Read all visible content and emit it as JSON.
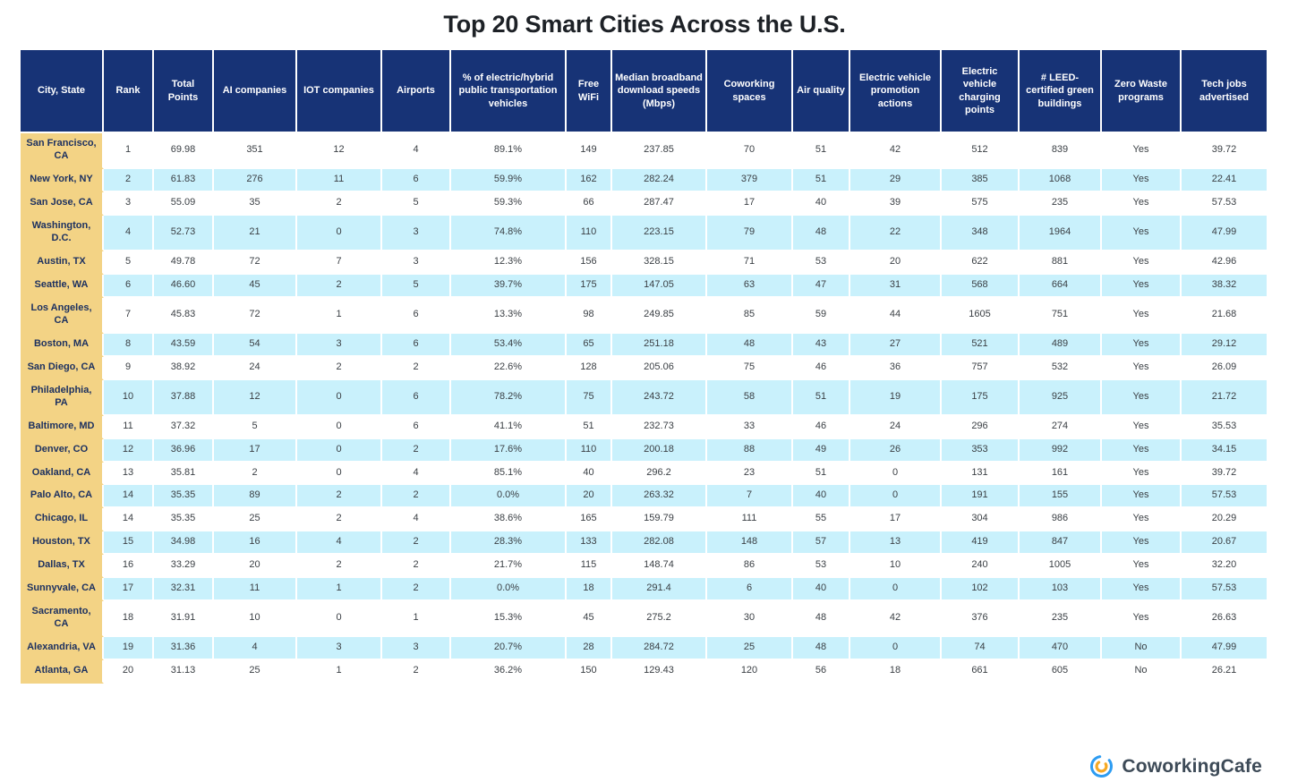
{
  "title": "Top 20 Smart Cities Across the U.S.",
  "chart_data": {
    "type": "table",
    "title": "Top 20 Smart Cities Across the U.S.",
    "columns": [
      "City, State",
      "Rank",
      "Total Points",
      "AI companies",
      "IOT companies",
      "Airports",
      "% of electric/hybrid public transportation vehicles",
      "Free WiFi",
      "Median broadband download speeds (Mbps)",
      "Coworking spaces",
      "Air quality",
      "Electric vehicle promotion actions",
      "Electric vehicle charging points",
      "# LEED-certified green buildings",
      "Zero Waste programs",
      "Tech jobs advertised"
    ],
    "rows": [
      [
        "San Francisco, CA",
        "1",
        "69.98",
        "351",
        "12",
        "4",
        "89.1%",
        "149",
        "237.85",
        "70",
        "51",
        "42",
        "512",
        "839",
        "Yes",
        "39.72"
      ],
      [
        "New York, NY",
        "2",
        "61.83",
        "276",
        "11",
        "6",
        "59.9%",
        "162",
        "282.24",
        "379",
        "51",
        "29",
        "385",
        "1068",
        "Yes",
        "22.41"
      ],
      [
        "San Jose, CA",
        "3",
        "55.09",
        "35",
        "2",
        "5",
        "59.3%",
        "66",
        "287.47",
        "17",
        "40",
        "39",
        "575",
        "235",
        "Yes",
        "57.53"
      ],
      [
        "Washington, D.C.",
        "4",
        "52.73",
        "21",
        "0",
        "3",
        "74.8%",
        "110",
        "223.15",
        "79",
        "48",
        "22",
        "348",
        "1964",
        "Yes",
        "47.99"
      ],
      [
        "Austin, TX",
        "5",
        "49.78",
        "72",
        "7",
        "3",
        "12.3%",
        "156",
        "328.15",
        "71",
        "53",
        "20",
        "622",
        "881",
        "Yes",
        "42.96"
      ],
      [
        "Seattle, WA",
        "6",
        "46.60",
        "45",
        "2",
        "5",
        "39.7%",
        "175",
        "147.05",
        "63",
        "47",
        "31",
        "568",
        "664",
        "Yes",
        "38.32"
      ],
      [
        "Los Angeles, CA",
        "7",
        "45.83",
        "72",
        "1",
        "6",
        "13.3%",
        "98",
        "249.85",
        "85",
        "59",
        "44",
        "1605",
        "751",
        "Yes",
        "21.68"
      ],
      [
        "Boston, MA",
        "8",
        "43.59",
        "54",
        "3",
        "6",
        "53.4%",
        "65",
        "251.18",
        "48",
        "43",
        "27",
        "521",
        "489",
        "Yes",
        "29.12"
      ],
      [
        "San Diego, CA",
        "9",
        "38.92",
        "24",
        "2",
        "2",
        "22.6%",
        "128",
        "205.06",
        "75",
        "46",
        "36",
        "757",
        "532",
        "Yes",
        "26.09"
      ],
      [
        "Philadelphia, PA",
        "10",
        "37.88",
        "12",
        "0",
        "6",
        "78.2%",
        "75",
        "243.72",
        "58",
        "51",
        "19",
        "175",
        "925",
        "Yes",
        "21.72"
      ],
      [
        "Baltimore, MD",
        "11",
        "37.32",
        "5",
        "0",
        "6",
        "41.1%",
        "51",
        "232.73",
        "33",
        "46",
        "24",
        "296",
        "274",
        "Yes",
        "35.53"
      ],
      [
        "Denver, CO",
        "12",
        "36.96",
        "17",
        "0",
        "2",
        "17.6%",
        "110",
        "200.18",
        "88",
        "49",
        "26",
        "353",
        "992",
        "Yes",
        "34.15"
      ],
      [
        "Oakland, CA",
        "13",
        "35.81",
        "2",
        "0",
        "4",
        "85.1%",
        "40",
        "296.2",
        "23",
        "51",
        "0",
        "131",
        "161",
        "Yes",
        "39.72"
      ],
      [
        "Palo Alto, CA",
        "14",
        "35.35",
        "89",
        "2",
        "2",
        "0.0%",
        "20",
        "263.32",
        "7",
        "40",
        "0",
        "191",
        "155",
        "Yes",
        "57.53"
      ],
      [
        "Chicago, IL",
        "14",
        "35.35",
        "25",
        "2",
        "4",
        "38.6%",
        "165",
        "159.79",
        "111",
        "55",
        "17",
        "304",
        "986",
        "Yes",
        "20.29"
      ],
      [
        "Houston, TX",
        "15",
        "34.98",
        "16",
        "4",
        "2",
        "28.3%",
        "133",
        "282.08",
        "148",
        "57",
        "13",
        "419",
        "847",
        "Yes",
        "20.67"
      ],
      [
        "Dallas, TX",
        "16",
        "33.29",
        "20",
        "2",
        "2",
        "21.7%",
        "115",
        "148.74",
        "86",
        "53",
        "10",
        "240",
        "1005",
        "Yes",
        "32.20"
      ],
      [
        "Sunnyvale, CA",
        "17",
        "32.31",
        "11",
        "1",
        "2",
        "0.0%",
        "18",
        "291.4",
        "6",
        "40",
        "0",
        "102",
        "103",
        "Yes",
        "57.53"
      ],
      [
        "Sacramento, CA",
        "18",
        "31.91",
        "10",
        "0",
        "1",
        "15.3%",
        "45",
        "275.2",
        "30",
        "48",
        "42",
        "376",
        "235",
        "Yes",
        "26.63"
      ],
      [
        "Alexandria, VA",
        "19",
        "31.36",
        "4",
        "3",
        "3",
        "20.7%",
        "28",
        "284.72",
        "25",
        "48",
        "0",
        "74",
        "470",
        "No",
        "47.99"
      ],
      [
        "Atlanta, GA",
        "20",
        "31.13",
        "25",
        "1",
        "2",
        "36.2%",
        "150",
        "129.43",
        "120",
        "56",
        "18",
        "661",
        "605",
        "No",
        "26.21"
      ]
    ]
  },
  "footer": {
    "brand": "CoworkingCafe"
  },
  "colors": {
    "header_navy": "#173376",
    "row_blue": "#c9f1fc",
    "city_yellow": "#f3d385",
    "city_text": "#1d3160",
    "body_text": "#3a3f44",
    "title_text": "#1d2126",
    "brand_text": "#3d4a57",
    "logo_blue": "#2d9cf2",
    "logo_orange": "#f6a924"
  }
}
